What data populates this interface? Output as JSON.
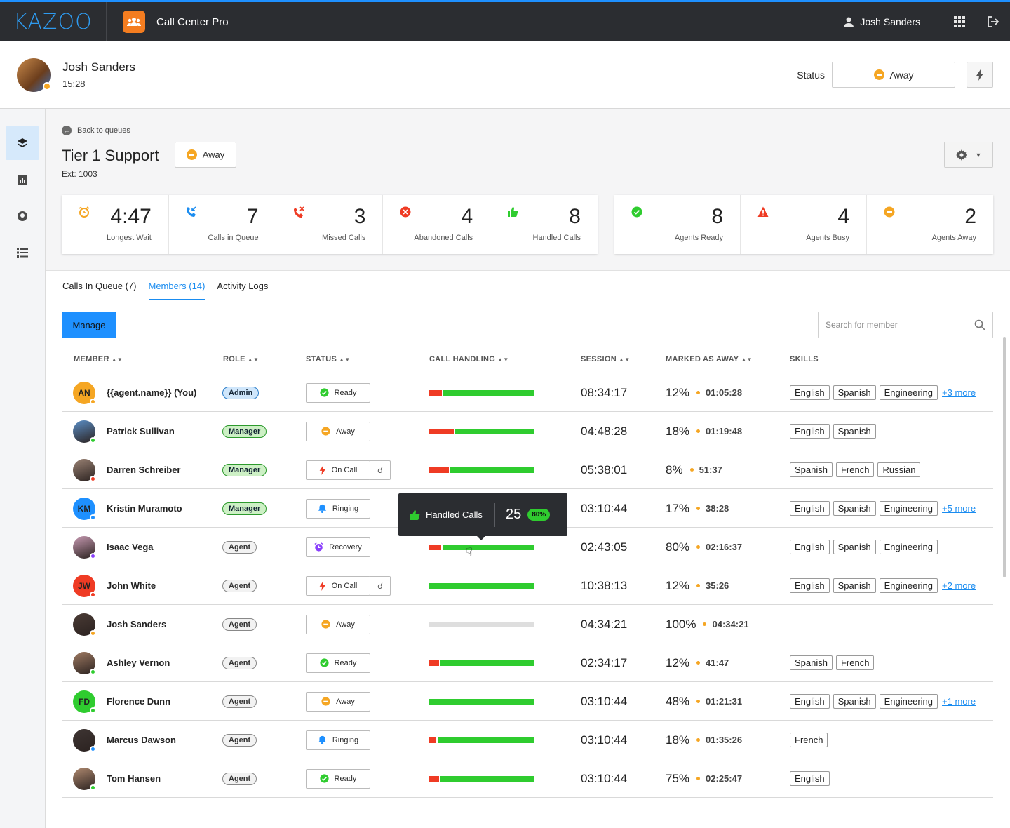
{
  "app": {
    "logo": "KAZOO",
    "name": "Call Center Pro",
    "user": "Josh Sanders"
  },
  "header": {
    "name": "Josh Sanders",
    "time": "15:28",
    "status_label": "Status",
    "status_value": "Away"
  },
  "queue": {
    "back": "Back to queues",
    "title": "Tier 1 Support",
    "ext": "Ext: 1003",
    "status": "Away"
  },
  "stats": [
    {
      "value": "4:47",
      "label": "Longest Wait",
      "icon": "alarm-icon",
      "color": "#f5a623"
    },
    {
      "value": "7",
      "label": "Calls in Queue",
      "icon": "incoming-call-icon",
      "color": "#1a8cf0"
    },
    {
      "value": "3",
      "label": "Missed Calls",
      "icon": "missed-call-icon",
      "color": "#ef3b24"
    },
    {
      "value": "4",
      "label": "Abandoned Calls",
      "icon": "abandoned-icon",
      "color": "#ef3b24"
    },
    {
      "value": "8",
      "label": "Handled Calls",
      "icon": "thumbs-up-icon",
      "color": "#2fcc2f"
    }
  ],
  "agent_stats": [
    {
      "value": "8",
      "label": "Agents Ready",
      "icon": "check-icon",
      "color": "#2fcc2f"
    },
    {
      "value": "4",
      "label": "Agents Busy",
      "icon": "warning-icon",
      "color": "#ef3b24"
    },
    {
      "value": "2",
      "label": "Agents Away",
      "icon": "away-icon",
      "color": "#f5a623"
    }
  ],
  "tabs": [
    "Calls In Queue (7)",
    "Members (14)",
    "Activity Logs"
  ],
  "manage_label": "Manage",
  "search_placeholder": "Search for member",
  "columns": [
    "MEMBER",
    "ROLE",
    "STATUS",
    "CALL HANDLING",
    "SESSION",
    "MARKED AS AWAY",
    "SKILLS"
  ],
  "tooltip": {
    "label": "Handled Calls",
    "value": "25",
    "percent": "80%"
  },
  "members": [
    {
      "name": "{{agent.name}} (You)",
      "initials": "AN",
      "avatar_color": "#f5a623",
      "dot": "#f5a623",
      "role": "Admin",
      "role_type": "admin",
      "status": "Ready",
      "status_type": "ready",
      "ear": false,
      "missed": 12,
      "session": "08:34:17",
      "away_pct": "12%",
      "away_time": "01:05:28",
      "skills": [
        "English",
        "Spanish",
        "Engineering"
      ],
      "more": "+3 more"
    },
    {
      "name": "Patrick Sullivan",
      "initials": "",
      "avatar_color": "#5b8fc7",
      "dot": "#2fcc2f",
      "role": "Manager",
      "role_type": "manager",
      "status": "Away",
      "status_type": "away",
      "ear": false,
      "missed": 29,
      "session": "04:48:28",
      "away_pct": "18%",
      "away_time": "01:19:48",
      "skills": [
        "English",
        "Spanish"
      ],
      "more": ""
    },
    {
      "name": "Darren Schreiber",
      "initials": "",
      "avatar_color": "#9a8274",
      "dot": "#ef3b24",
      "role": "Manager",
      "role_type": "manager",
      "status": "On Call",
      "status_type": "oncall",
      "ear": true,
      "missed": 22,
      "session": "05:38:01",
      "away_pct": "8%",
      "away_time": "51:37",
      "skills": [
        "Spanish",
        "French",
        "Russian"
      ],
      "more": ""
    },
    {
      "name": "Kristin Muramoto",
      "initials": "KM",
      "avatar_color": "#1e90ff",
      "dot": "#1e90ff",
      "role": "Manager",
      "role_type": "manager",
      "status": "Ringing",
      "status_type": "ringing",
      "ear": false,
      "missed": 0,
      "hidden_bar": true,
      "session": "03:10:44",
      "away_pct": "17%",
      "away_time": "38:28",
      "skills": [
        "English",
        "Spanish",
        "Engineering"
      ],
      "more": "+5 more"
    },
    {
      "name": "Isaac Vega",
      "initials": "",
      "avatar_color": "#c79ab2",
      "dot": "#8a3ffc",
      "role": "Agent",
      "role_type": "agent",
      "status": "Recovery",
      "status_type": "recovery",
      "ear": false,
      "missed": 11,
      "session": "02:43:05",
      "away_pct": "80%",
      "away_time": "02:16:37",
      "skills": [
        "English",
        "Spanish",
        "Engineering"
      ],
      "more": ""
    },
    {
      "name": "John White",
      "initials": "JW",
      "avatar_color": "#ef3b24",
      "dot": "#ef3b24",
      "role": "Agent",
      "role_type": "agent",
      "status": "On Call",
      "status_type": "oncall",
      "ear": true,
      "missed": 0,
      "session": "10:38:13",
      "away_pct": "12%",
      "away_time": "35:26",
      "skills": [
        "English",
        "Spanish",
        "Engineering"
      ],
      "more": "+2 more"
    },
    {
      "name": "Josh Sanders",
      "initials": "",
      "avatar_color": "#4a3b35",
      "dot": "#f5a623",
      "role": "Agent",
      "role_type": "agent",
      "status": "Away",
      "status_type": "away",
      "ear": false,
      "missed": -1,
      "session": "04:34:21",
      "away_pct": "100%",
      "away_time": "04:34:21",
      "skills": [],
      "more": ""
    },
    {
      "name": "Ashley Vernon",
      "initials": "",
      "avatar_color": "#a07b63",
      "dot": "#2fcc2f",
      "role": "Agent",
      "role_type": "agent",
      "status": "Ready",
      "status_type": "ready",
      "ear": false,
      "missed": 8,
      "session": "02:34:17",
      "away_pct": "12%",
      "away_time": "41:47",
      "skills": [
        "Spanish",
        "French"
      ],
      "more": ""
    },
    {
      "name": "Florence Dunn",
      "initials": "FD",
      "avatar_color": "#2fcc2f",
      "dot": "#2fcc2f",
      "role": "Agent",
      "role_type": "agent",
      "status": "Away",
      "status_type": "away",
      "ear": false,
      "missed": 0,
      "session": "03:10:44",
      "away_pct": "48%",
      "away_time": "01:21:31",
      "skills": [
        "English",
        "Spanish",
        "Engineering"
      ],
      "more": "+1 more"
    },
    {
      "name": "Marcus Dawson",
      "initials": "",
      "avatar_color": "#3e3533",
      "dot": "#1e90ff",
      "role": "Agent",
      "role_type": "agent",
      "status": "Ringing",
      "status_type": "ringing",
      "ear": false,
      "missed": 4,
      "session": "03:10:44",
      "away_pct": "18%",
      "away_time": "01:35:26",
      "skills": [
        "French"
      ],
      "more": ""
    },
    {
      "name": "Tom Hansen",
      "initials": "",
      "avatar_color": "#b08a70",
      "dot": "#2fcc2f",
      "role": "Agent",
      "role_type": "agent",
      "status": "Ready",
      "status_type": "ready",
      "ear": false,
      "missed": 8,
      "session": "03:10:44",
      "away_pct": "75%",
      "away_time": "02:25:47",
      "skills": [
        "English"
      ],
      "more": ""
    }
  ]
}
